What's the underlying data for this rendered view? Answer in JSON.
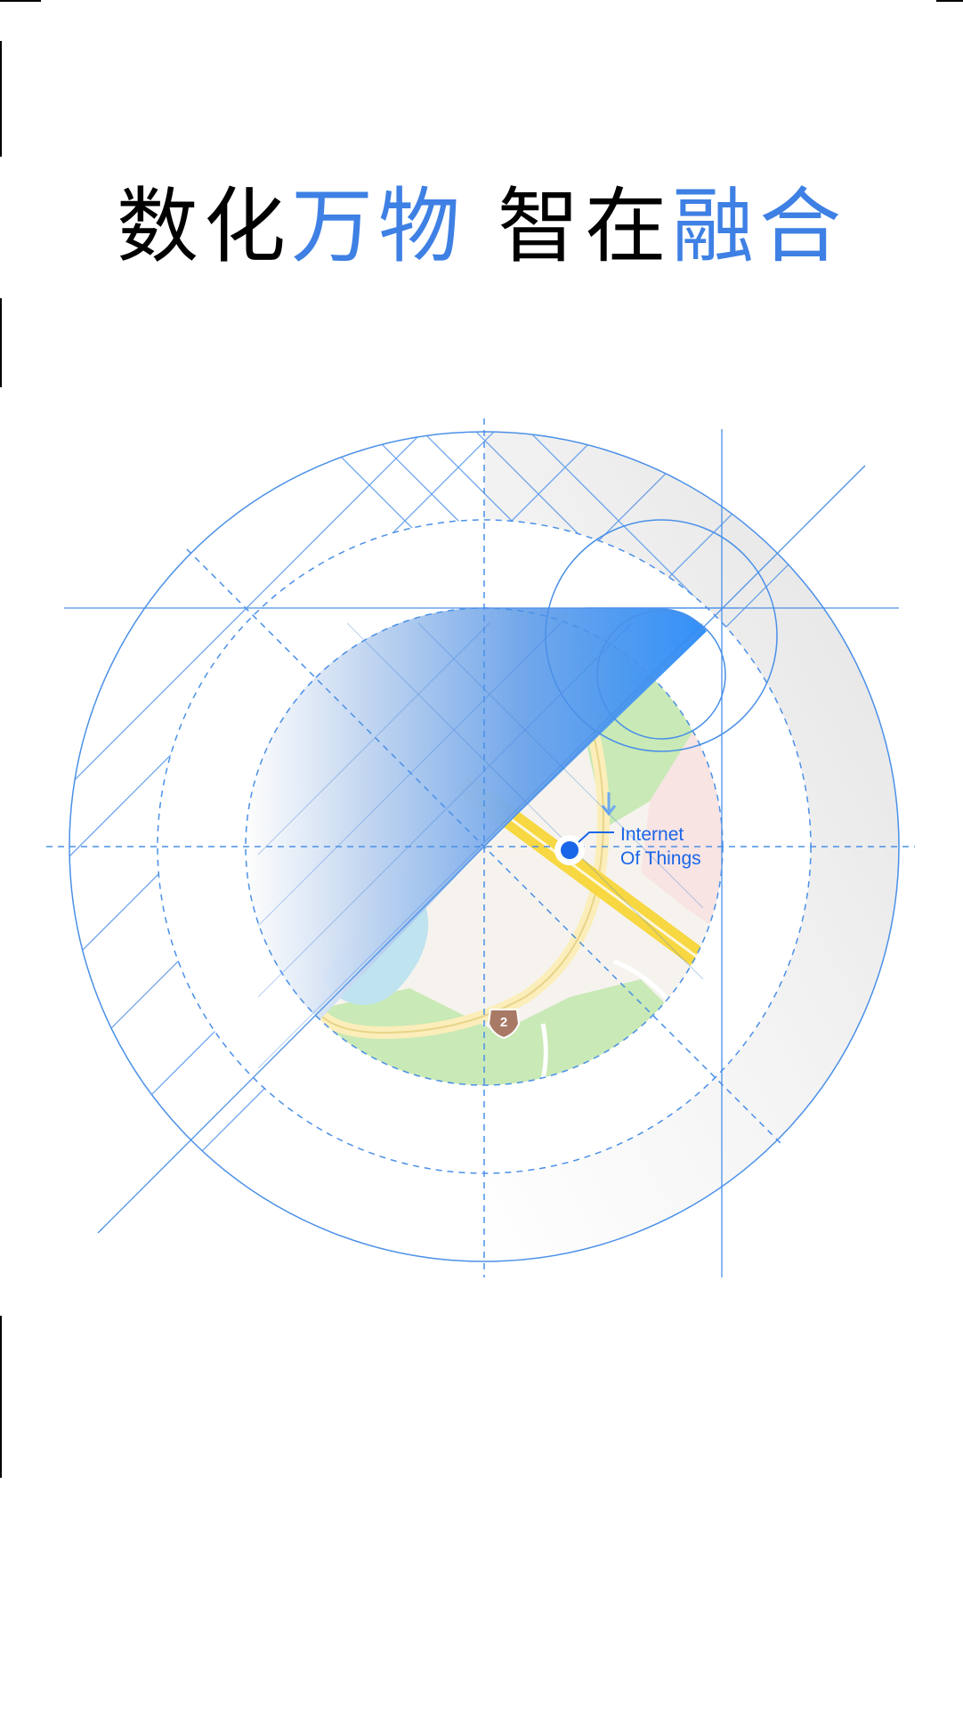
{
  "headline": {
    "part1": "数化",
    "part2": "万物",
    "part3": "智在",
    "part4": "融合"
  },
  "callout": {
    "line1": "Internet",
    "line2": "Of Things"
  },
  "route_badge": "2",
  "colors": {
    "accent": "#3e80e4",
    "line_blue": "#4a90e8",
    "marker_blue": "#1a66e8",
    "text": "#000000",
    "background": "#ffffff"
  },
  "icons": [
    "map-pin-icon",
    "route-shield-icon",
    "direction-arrow-icon"
  ]
}
